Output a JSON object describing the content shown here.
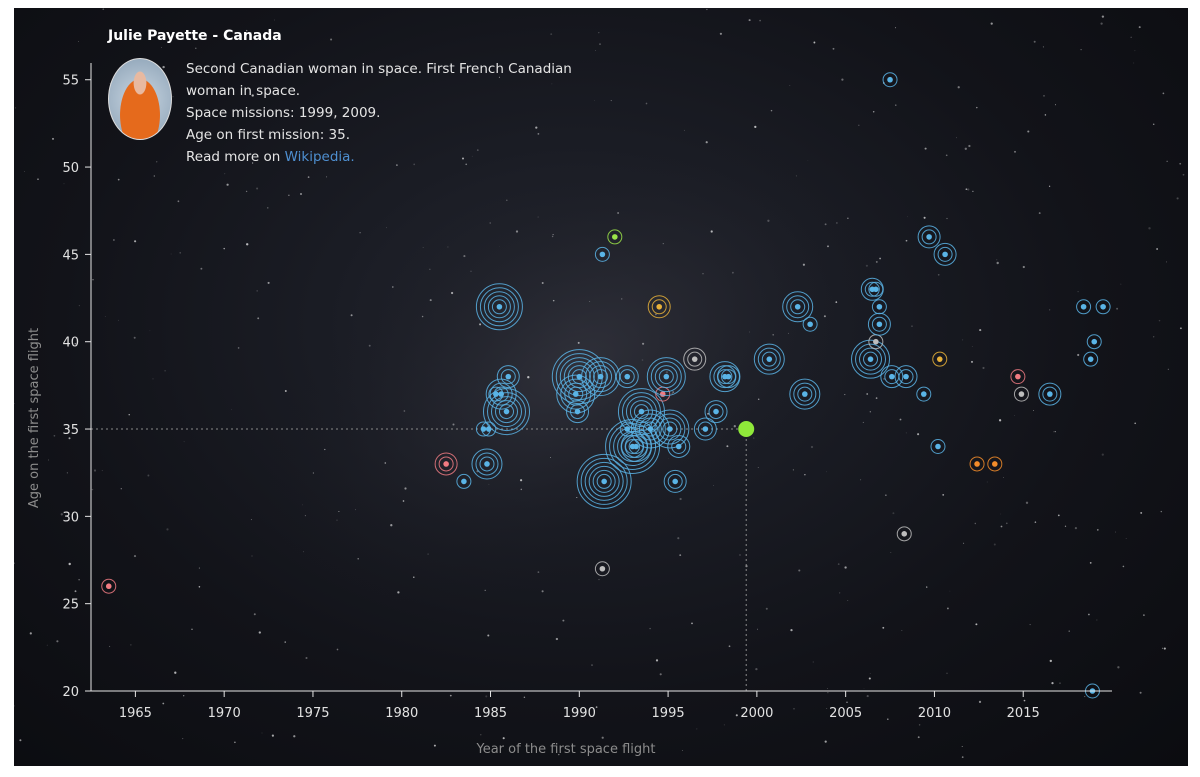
{
  "tooltip": {
    "name": "Julie Payette - Canada",
    "description_line1": "Second Canadian woman in space. First French Canadian",
    "description_line2": "woman in space.",
    "missions": "Space missions: 1999, 2009.",
    "age": "Age on first mission: 35.",
    "read_more": "Read more on ",
    "link_text": "Wikipedia."
  },
  "colors": {
    "usa": "#5ab4e6",
    "ussr": "#f07b82",
    "china": "#f28c2a",
    "other": "#bdbdbd",
    "japan_gold": "#e8b13a",
    "green": "#9be349",
    "selected": "#8fe83a",
    "axis": "#e6e6e6",
    "guide": "#8a8a8a"
  },
  "chart_data": {
    "type": "scatter",
    "title": "",
    "xlabel": "Year of the first space flight",
    "ylabel": "Age on the first space flight",
    "xlim": [
      1962.5,
      2020
    ],
    "ylim": [
      20,
      55.5
    ],
    "xticks": [
      1965,
      1970,
      1975,
      1980,
      1985,
      1990,
      1995,
      2000,
      2005,
      2010,
      2015
    ],
    "yticks": [
      20,
      25,
      30,
      35,
      40,
      45,
      50,
      55
    ],
    "selected": {
      "name": "Julie Payette",
      "x": 1999.4,
      "y": 35
    },
    "points": [
      {
        "x": 1963.5,
        "y": 26,
        "n": 1,
        "c": "ussr"
      },
      {
        "x": 1982.5,
        "y": 33,
        "n": 2,
        "c": "ussr"
      },
      {
        "x": 1983.5,
        "y": 32,
        "n": 1,
        "c": "usa"
      },
      {
        "x": 1984.6,
        "y": 35,
        "n": 1,
        "c": "usa"
      },
      {
        "x": 1984.8,
        "y": 33,
        "n": 3,
        "c": "usa"
      },
      {
        "x": 1984.9,
        "y": 35,
        "n": 1,
        "c": "usa"
      },
      {
        "x": 1985.3,
        "y": 37,
        "n": 1,
        "c": "usa"
      },
      {
        "x": 1985.5,
        "y": 42,
        "n": 5,
        "c": "usa"
      },
      {
        "x": 1985.6,
        "y": 37,
        "n": 3,
        "c": "usa"
      },
      {
        "x": 1985.9,
        "y": 36,
        "n": 5,
        "c": "usa"
      },
      {
        "x": 1986.0,
        "y": 38,
        "n": 2,
        "c": "usa"
      },
      {
        "x": 1989.9,
        "y": 36,
        "n": 2,
        "c": "usa"
      },
      {
        "x": 1990.0,
        "y": 38,
        "n": 6,
        "c": "usa"
      },
      {
        "x": 1989.8,
        "y": 37,
        "n": 4,
        "c": "usa"
      },
      {
        "x": 1991.2,
        "y": 38,
        "n": 4,
        "c": "usa"
      },
      {
        "x": 1991.3,
        "y": 45,
        "n": 1,
        "c": "usa"
      },
      {
        "x": 1991.4,
        "y": 32,
        "n": 6,
        "c": "usa"
      },
      {
        "x": 1991.3,
        "y": 27,
        "n": 1,
        "c": "other"
      },
      {
        "x": 1992.0,
        "y": 46,
        "n": 1,
        "c": "green"
      },
      {
        "x": 1992.7,
        "y": 38,
        "n": 2,
        "c": "usa"
      },
      {
        "x": 1992.7,
        "y": 35,
        "n": 1,
        "c": "usa"
      },
      {
        "x": 1993.0,
        "y": 34,
        "n": 6,
        "c": "usa"
      },
      {
        "x": 1993.2,
        "y": 34,
        "n": 3,
        "c": "usa"
      },
      {
        "x": 1993.5,
        "y": 36,
        "n": 5,
        "c": "usa"
      },
      {
        "x": 1994.0,
        "y": 35,
        "n": 4,
        "c": "usa"
      },
      {
        "x": 1994.5,
        "y": 42,
        "n": 2,
        "c": "japan_gold"
      },
      {
        "x": 1994.7,
        "y": 37,
        "n": 1,
        "c": "ussr"
      },
      {
        "x": 1994.9,
        "y": 38,
        "n": 4,
        "c": "usa"
      },
      {
        "x": 1995.1,
        "y": 35,
        "n": 4,
        "c": "usa"
      },
      {
        "x": 1995.4,
        "y": 32,
        "n": 2,
        "c": "usa"
      },
      {
        "x": 1995.6,
        "y": 34,
        "n": 2,
        "c": "usa"
      },
      {
        "x": 1996.5,
        "y": 39,
        "n": 2,
        "c": "other"
      },
      {
        "x": 1997.1,
        "y": 35,
        "n": 2,
        "c": "usa"
      },
      {
        "x": 1997.7,
        "y": 36,
        "n": 2,
        "c": "usa"
      },
      {
        "x": 1998.2,
        "y": 38,
        "n": 3,
        "c": "usa"
      },
      {
        "x": 1998.4,
        "y": 38,
        "n": 2,
        "c": "usa"
      },
      {
        "x": 2000.7,
        "y": 39,
        "n": 3,
        "c": "usa"
      },
      {
        "x": 2002.3,
        "y": 42,
        "n": 3,
        "c": "usa"
      },
      {
        "x": 2002.7,
        "y": 37,
        "n": 3,
        "c": "usa"
      },
      {
        "x": 2003.0,
        "y": 41,
        "n": 1,
        "c": "usa"
      },
      {
        "x": 2006.4,
        "y": 39,
        "n": 4,
        "c": "usa"
      },
      {
        "x": 2006.5,
        "y": 43,
        "n": 2,
        "c": "usa"
      },
      {
        "x": 2006.7,
        "y": 43,
        "n": 1,
        "c": "usa"
      },
      {
        "x": 2006.7,
        "y": 40,
        "n": 1,
        "c": "other"
      },
      {
        "x": 2006.9,
        "y": 41,
        "n": 2,
        "c": "usa"
      },
      {
        "x": 2006.9,
        "y": 42,
        "n": 1,
        "c": "usa"
      },
      {
        "x": 2007.5,
        "y": 55,
        "n": 1,
        "c": "usa"
      },
      {
        "x": 2007.6,
        "y": 38,
        "n": 2,
        "c": "usa"
      },
      {
        "x": 2008.3,
        "y": 29,
        "n": 1,
        "c": "other"
      },
      {
        "x": 2008.4,
        "y": 38,
        "n": 2,
        "c": "usa"
      },
      {
        "x": 2009.4,
        "y": 37,
        "n": 1,
        "c": "usa"
      },
      {
        "x": 2009.7,
        "y": 46,
        "n": 2,
        "c": "usa"
      },
      {
        "x": 2010.2,
        "y": 34,
        "n": 1,
        "c": "usa"
      },
      {
        "x": 2010.3,
        "y": 39,
        "n": 1,
        "c": "japan_gold"
      },
      {
        "x": 2010.6,
        "y": 45,
        "n": 2,
        "c": "usa"
      },
      {
        "x": 2012.4,
        "y": 33,
        "n": 1,
        "c": "china"
      },
      {
        "x": 2013.4,
        "y": 33,
        "n": 1,
        "c": "china"
      },
      {
        "x": 2014.7,
        "y": 38,
        "n": 1,
        "c": "ussr"
      },
      {
        "x": 2014.9,
        "y": 37,
        "n": 1,
        "c": "other"
      },
      {
        "x": 2016.5,
        "y": 37,
        "n": 2,
        "c": "usa"
      },
      {
        "x": 2018.4,
        "y": 42,
        "n": 1,
        "c": "usa"
      },
      {
        "x": 2018.8,
        "y": 39,
        "n": 1,
        "c": "usa"
      },
      {
        "x": 2019.0,
        "y": 40,
        "n": 1,
        "c": "usa"
      },
      {
        "x": 2018.9,
        "y": 20,
        "n": 1,
        "c": "usa"
      },
      {
        "x": 2019.5,
        "y": 42,
        "n": 1,
        "c": "usa"
      }
    ]
  }
}
